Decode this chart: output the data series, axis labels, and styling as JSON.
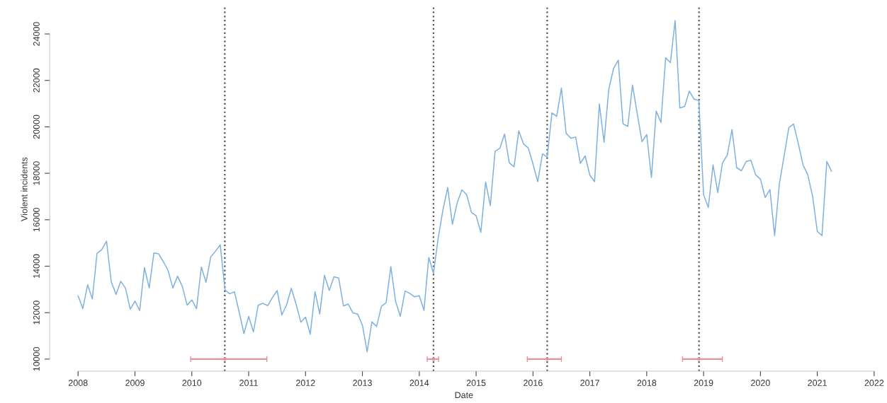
{
  "chart_data": {
    "type": "line",
    "xlabel": "Date",
    "ylabel": "Violent incidents",
    "xlim": [
      2007.5,
      2022.07
    ],
    "ylim": [
      9480,
      25150
    ],
    "xticks": [
      2008,
      2009,
      2010,
      2011,
      2012,
      2013,
      2014,
      2015,
      2016,
      2017,
      2018,
      2019,
      2020,
      2021,
      2022
    ],
    "yticks": [
      10000,
      12000,
      14000,
      16000,
      18000,
      20000,
      22000,
      24000
    ],
    "grid": false,
    "legend": false,
    "series": [
      {
        "color": "#7fb2e0",
        "marker": "none",
        "line_style": "solid",
        "x": [
          2008.0,
          2008.083,
          2008.167,
          2008.25,
          2008.333,
          2008.417,
          2008.5,
          2008.583,
          2008.667,
          2008.75,
          2008.833,
          2008.917,
          2009.0,
          2009.083,
          2009.167,
          2009.25,
          2009.333,
          2009.417,
          2009.5,
          2009.583,
          2009.667,
          2009.75,
          2009.833,
          2009.917,
          2010.0,
          2010.083,
          2010.167,
          2010.25,
          2010.333,
          2010.417,
          2010.5,
          2010.583,
          2010.667,
          2010.75,
          2010.833,
          2010.917,
          2011.0,
          2011.083,
          2011.167,
          2011.25,
          2011.333,
          2011.417,
          2011.5,
          2011.583,
          2011.667,
          2011.75,
          2011.833,
          2011.917,
          2012.0,
          2012.083,
          2012.167,
          2012.25,
          2012.333,
          2012.417,
          2012.5,
          2012.583,
          2012.667,
          2012.75,
          2012.833,
          2012.917,
          2013.0,
          2013.083,
          2013.167,
          2013.25,
          2013.333,
          2013.417,
          2013.5,
          2013.583,
          2013.667,
          2013.75,
          2013.833,
          2013.917,
          2014.0,
          2014.083,
          2014.167,
          2014.25,
          2014.333,
          2014.417,
          2014.5,
          2014.583,
          2014.667,
          2014.75,
          2014.833,
          2014.917,
          2015.0,
          2015.083,
          2015.167,
          2015.25,
          2015.333,
          2015.417,
          2015.5,
          2015.583,
          2015.667,
          2015.75,
          2015.833,
          2015.917,
          2016.0,
          2016.083,
          2016.167,
          2016.25,
          2016.333,
          2016.417,
          2016.5,
          2016.583,
          2016.667,
          2016.75,
          2016.833,
          2016.917,
          2017.0,
          2017.083,
          2017.167,
          2017.25,
          2017.333,
          2017.417,
          2017.5,
          2017.583,
          2017.667,
          2017.75,
          2017.833,
          2017.917,
          2018.0,
          2018.083,
          2018.167,
          2018.25,
          2018.333,
          2018.417,
          2018.5,
          2018.583,
          2018.667,
          2018.75,
          2018.833,
          2018.917,
          2019.0,
          2019.083,
          2019.167,
          2019.25,
          2019.333,
          2019.417,
          2019.5,
          2019.583,
          2019.667,
          2019.75,
          2019.833,
          2019.917,
          2020.0,
          2020.083,
          2020.167,
          2020.25,
          2020.333,
          2020.417,
          2020.5,
          2020.583,
          2020.667,
          2020.75,
          2020.833,
          2020.917,
          2021.0,
          2021.083,
          2021.167,
          2021.25
        ],
        "values": [
          12730,
          12170,
          13200,
          12590,
          14550,
          14720,
          15080,
          13330,
          12780,
          13350,
          13060,
          12150,
          12500,
          12090,
          13940,
          13060,
          14570,
          14530,
          14190,
          13810,
          13060,
          13570,
          13130,
          12320,
          12550,
          12170,
          13960,
          13310,
          14400,
          14650,
          14920,
          12980,
          12810,
          12900,
          12020,
          11100,
          11840,
          11170,
          12320,
          12400,
          12300,
          12650,
          12950,
          11900,
          12340,
          13050,
          12370,
          11590,
          11810,
          11070,
          12900,
          11940,
          13610,
          12960,
          13540,
          13490,
          12290,
          12370,
          11990,
          11940,
          11460,
          10310,
          11600,
          11410,
          12270,
          12430,
          13980,
          12490,
          11840,
          12930,
          12830,
          12680,
          12730,
          12100,
          14380,
          13690,
          15210,
          16430,
          17390,
          15800,
          16730,
          17290,
          17080,
          16320,
          16170,
          15460,
          17620,
          16610,
          18940,
          19080,
          19690,
          18450,
          18280,
          19830,
          19270,
          19090,
          18400,
          17640,
          18840,
          18700,
          20600,
          20450,
          21670,
          19720,
          19510,
          19560,
          18430,
          18750,
          17920,
          17640,
          20990,
          19340,
          21620,
          22510,
          22870,
          20130,
          20020,
          21800,
          20580,
          19360,
          19670,
          17820,
          20680,
          20190,
          22970,
          22770,
          24580,
          20810,
          20880,
          21540,
          21190,
          21140,
          17080,
          16530,
          18360,
          17170,
          18450,
          18780,
          19880,
          18240,
          18110,
          18510,
          18560,
          17930,
          17750,
          16960,
          17300,
          15320,
          17540,
          18750,
          19970,
          20120,
          19270,
          18360,
          17930,
          17020,
          15500,
          15320,
          18510,
          18090
        ]
      },
      {
        "type": "scatter",
        "color": "#e8909a",
        "marker": "none",
        "x": [
          2010.58,
          2014.25,
          2016.25,
          2018.92
        ],
        "values": [
          10000,
          10000,
          10000,
          10000
        ],
        "xerrors": [
          [
            2009.98,
            2011.32
          ],
          [
            2014.14,
            2014.34
          ],
          [
            2015.9,
            2016.5
          ],
          [
            2018.63,
            2019.33
          ]
        ]
      }
    ],
    "ref_lines": [
      {
        "axis": "x",
        "value": 2010.58,
        "color": "#555555",
        "line_style": "dotted"
      },
      {
        "axis": "x",
        "value": 2014.25,
        "color": "#555555",
        "line_style": "dotted"
      },
      {
        "axis": "x",
        "value": 2016.25,
        "color": "#555555",
        "line_style": "dotted"
      },
      {
        "axis": "x",
        "value": 2018.92,
        "color": "#555555",
        "line_style": "dotted"
      }
    ]
  }
}
